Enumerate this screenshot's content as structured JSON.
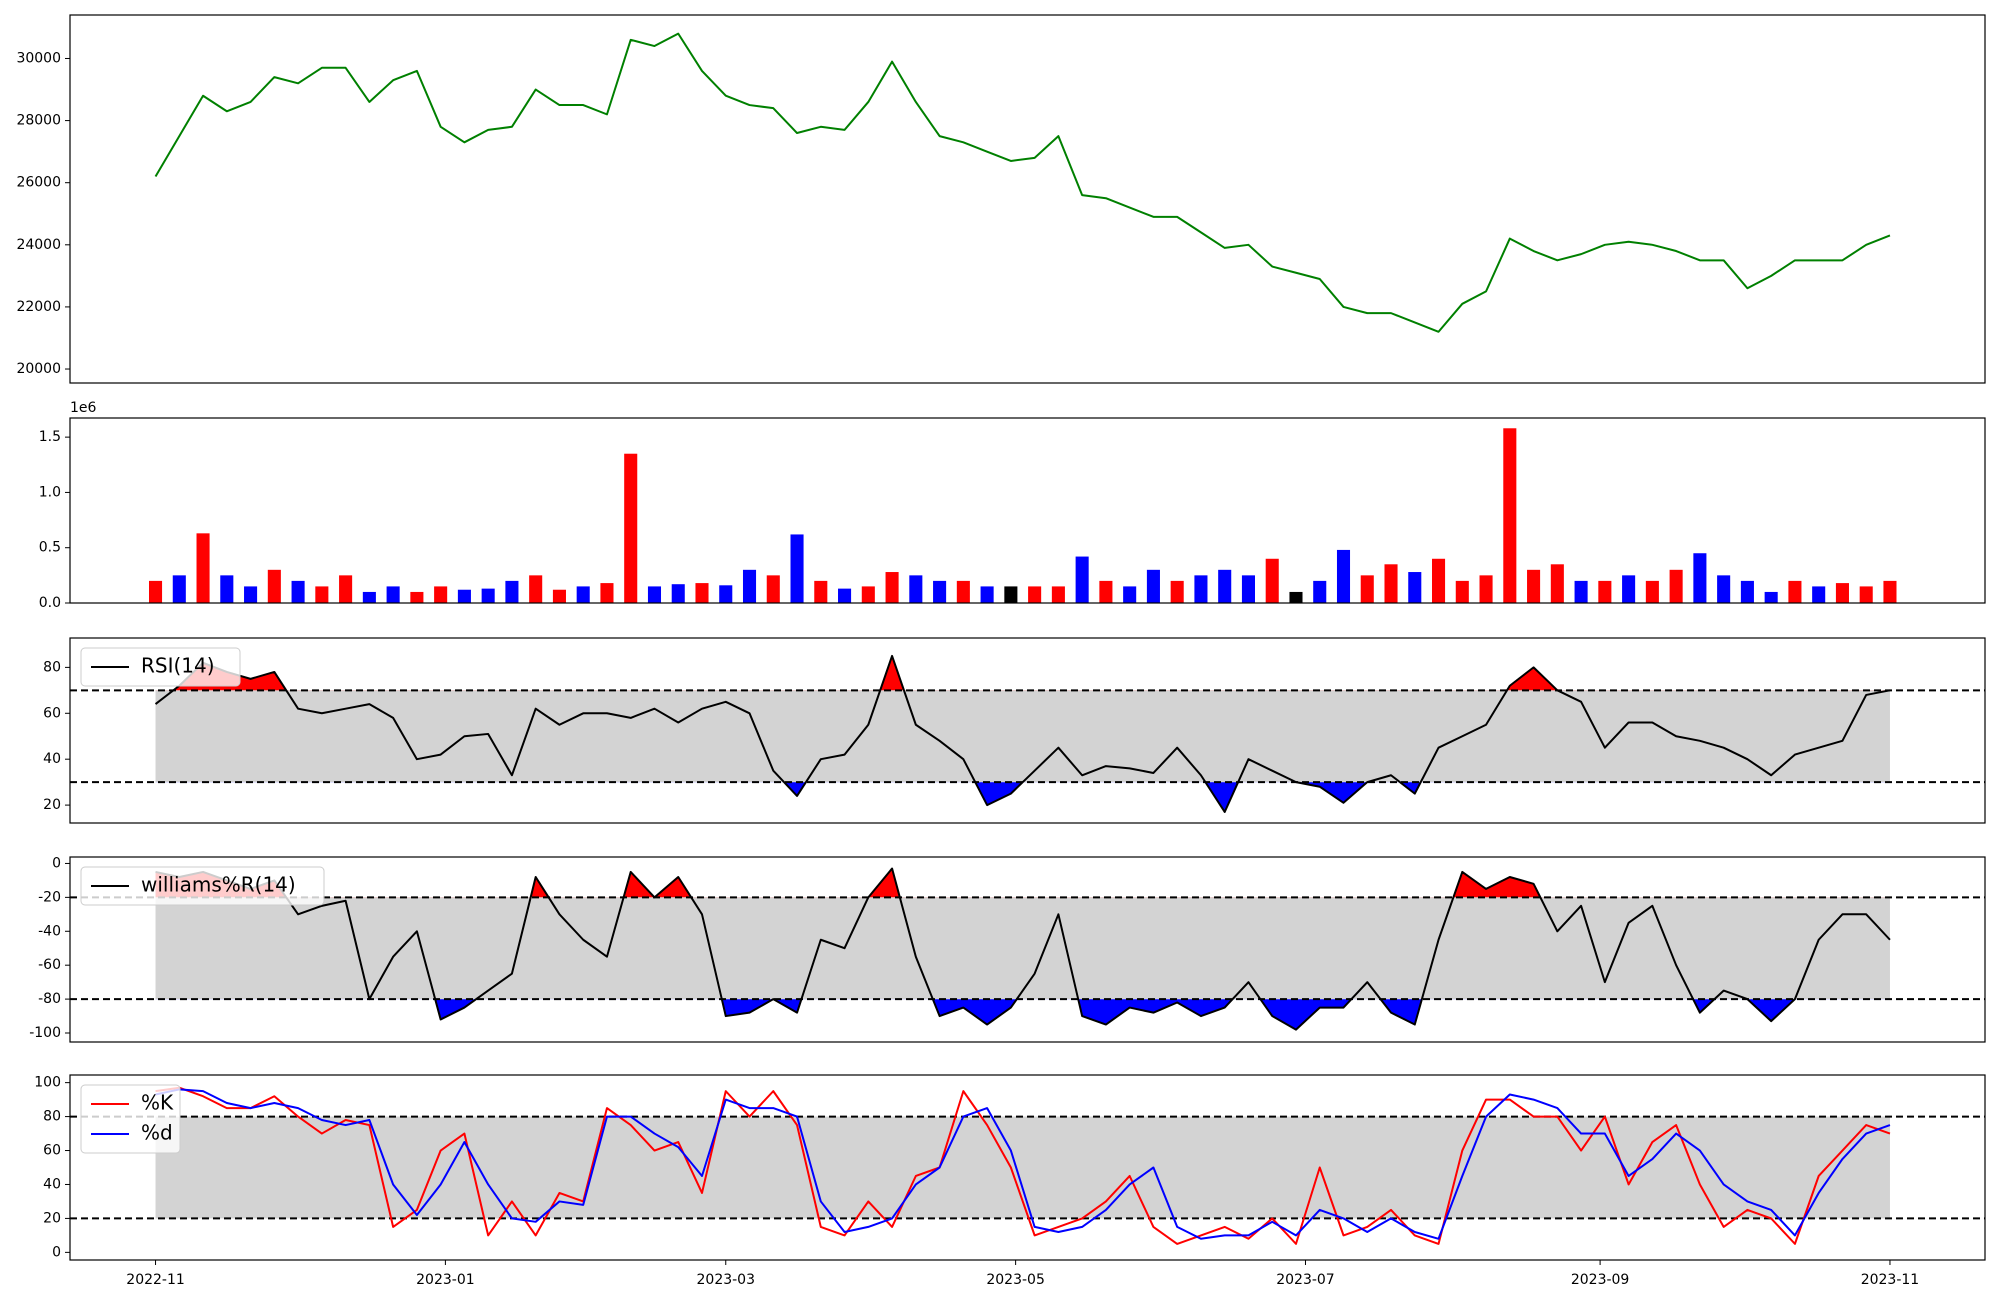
{
  "chart_data": [
    {
      "type": "line",
      "x": [
        19297,
        19302,
        19307,
        19312,
        19317,
        19322,
        19327,
        19332,
        19337,
        19342,
        19347,
        19352,
        19357,
        19362,
        19367,
        19372,
        19377,
        19382,
        19387,
        19392,
        19397,
        19402,
        19407,
        19412,
        19417,
        19422,
        19427,
        19432,
        19437,
        19442,
        19447,
        19452,
        19457,
        19462,
        19467,
        19472,
        19477,
        19482,
        19487,
        19492,
        19497,
        19502,
        19507,
        19512,
        19517,
        19522,
        19527,
        19532,
        19537,
        19542,
        19547,
        19552,
        19557,
        19562,
        19567,
        19572,
        19577,
        19582,
        19587,
        19592,
        19597,
        19602,
        19607,
        19612,
        19617,
        19622,
        19627,
        19632,
        19637,
        19642,
        19647,
        19652,
        19657,
        19662
      ],
      "series": [
        {
          "color": "green",
          "values": [
            26200,
            27500,
            28800,
            28300,
            28600,
            29400,
            29200,
            29700,
            29700,
            28600,
            29300,
            29600,
            27800,
            27300,
            27700,
            27800,
            29000,
            28500,
            28500,
            28200,
            30600,
            30400,
            30800,
            29600,
            28800,
            28500,
            28400,
            27600,
            27800,
            27700,
            28600,
            29900,
            28600,
            27500,
            27300,
            27000,
            26700,
            26800,
            27500,
            25600,
            25500,
            25200,
            24900,
            24900,
            24400,
            23900,
            24000,
            23300,
            23100,
            22900,
            22000,
            21800,
            21800,
            21500,
            21200,
            22100,
            22500,
            24200,
            23800,
            23500,
            23700,
            24000,
            24100,
            24000,
            23800,
            23500,
            23500,
            22600,
            23000,
            23500,
            23500,
            23500,
            24000,
            24300
          ]
        }
      ],
      "xlim": [
        19279,
        19682
      ],
      "ylim": [
        19550,
        31400
      ],
      "yticks": [
        20000,
        22000,
        24000,
        26000,
        28000,
        30000
      ]
    },
    {
      "type": "bar",
      "offset_label": "1e6",
      "x": [
        19297,
        19302,
        19307,
        19312,
        19317,
        19322,
        19327,
        19332,
        19337,
        19342,
        19347,
        19352,
        19357,
        19362,
        19367,
        19372,
        19377,
        19382,
        19387,
        19392,
        19397,
        19402,
        19407,
        19412,
        19417,
        19422,
        19427,
        19432,
        19437,
        19442,
        19447,
        19452,
        19457,
        19462,
        19467,
        19472,
        19477,
        19482,
        19487,
        19492,
        19497,
        19502,
        19507,
        19512,
        19517,
        19522,
        19527,
        19532,
        19537,
        19542,
        19547,
        19552,
        19557,
        19562,
        19567,
        19572,
        19577,
        19582,
        19587,
        19592,
        19597,
        19602,
        19607,
        19612,
        19617,
        19622,
        19627,
        19632,
        19637,
        19642,
        19647,
        19652,
        19657,
        19662
      ],
      "values": [
        200000,
        250000,
        630000,
        250000,
        150000,
        300000,
        200000,
        150000,
        250000,
        100000,
        150000,
        100000,
        150000,
        120000,
        130000,
        200000,
        250000,
        120000,
        150000,
        180000,
        1350000,
        150000,
        170000,
        180000,
        160000,
        300000,
        250000,
        620000,
        200000,
        130000,
        150000,
        280000,
        250000,
        200000,
        200000,
        150000,
        150000,
        150000,
        150000,
        420000,
        200000,
        150000,
        300000,
        200000,
        250000,
        300000,
        250000,
        400000,
        100000,
        200000,
        480000,
        250000,
        350000,
        280000,
        400000,
        200000,
        250000,
        1580000,
        300000,
        350000,
        200000,
        200000,
        250000,
        200000,
        300000,
        450000,
        250000,
        200000,
        100000,
        200000,
        150000,
        180000,
        150000,
        200000
      ],
      "colors": [
        "red",
        "blue",
        "red",
        "blue",
        "blue",
        "red",
        "blue",
        "red",
        "red",
        "blue",
        "blue",
        "red",
        "red",
        "blue",
        "blue",
        "blue",
        "red",
        "red",
        "blue",
        "red",
        "red",
        "blue",
        "blue",
        "red",
        "blue",
        "blue",
        "red",
        "blue",
        "red",
        "blue",
        "red",
        "red",
        "blue",
        "blue",
        "red",
        "blue",
        "black",
        "red",
        "red",
        "blue",
        "red",
        "blue",
        "blue",
        "red",
        "blue",
        "blue",
        "blue",
        "red",
        "black",
        "blue",
        "blue",
        "red",
        "red",
        "blue",
        "red",
        "red",
        "red",
        "red",
        "red",
        "red",
        "blue",
        "red",
        "blue",
        "red",
        "red",
        "blue",
        "blue",
        "blue",
        "blue",
        "red",
        "blue",
        "red",
        "red",
        "red"
      ],
      "xlim": [
        19279,
        19682
      ],
      "ylim": [
        0,
        1673000
      ],
      "yticks": [
        {
          "value": 0,
          "label": "0.0"
        },
        {
          "value": 500000,
          "label": "0.5"
        },
        {
          "value": 1000000,
          "label": "1.0"
        },
        {
          "value": 1500000,
          "label": "1.5"
        }
      ]
    },
    {
      "type": "line",
      "legend": "upper left",
      "x": [
        19297,
        19302,
        19307,
        19312,
        19317,
        19322,
        19327,
        19332,
        19337,
        19342,
        19347,
        19352,
        19357,
        19362,
        19367,
        19372,
        19377,
        19382,
        19387,
        19392,
        19397,
        19402,
        19407,
        19412,
        19417,
        19422,
        19427,
        19432,
        19437,
        19442,
        19447,
        19452,
        19457,
        19462,
        19467,
        19472,
        19477,
        19482,
        19487,
        19492,
        19497,
        19502,
        19507,
        19512,
        19517,
        19522,
        19527,
        19532,
        19537,
        19542,
        19547,
        19552,
        19557,
        19562,
        19567,
        19572,
        19577,
        19582,
        19587,
        19592,
        19597,
        19602,
        19607,
        19612,
        19617,
        19622,
        19627,
        19632,
        19637,
        19642,
        19647,
        19652,
        19657,
        19662
      ],
      "series": [
        {
          "name": "RSI(14)",
          "color": "black",
          "values": [
            64,
            72,
            82,
            78,
            75,
            78,
            62,
            60,
            62,
            64,
            58,
            40,
            42,
            50,
            51,
            33,
            62,
            55,
            60,
            60,
            58,
            62,
            56,
            62,
            65,
            60,
            35,
            24,
            40,
            42,
            55,
            85,
            55,
            48,
            40,
            20,
            25,
            35,
            45,
            33,
            37,
            36,
            34,
            45,
            33,
            17,
            40,
            35,
            30,
            28,
            21,
            30,
            33,
            25,
            45,
            50,
            55,
            72,
            80,
            70,
            65,
            45,
            56,
            56,
            50,
            48,
            45,
            40,
            33,
            42,
            45,
            48,
            68,
            70
          ]
        }
      ],
      "thresholds": [
        70,
        30
      ],
      "band_color": "lightgray",
      "fill_above": "red",
      "fill_below": "blue",
      "xlim": [
        19279,
        19682
      ],
      "ylim": [
        12.2,
        92.8
      ],
      "yticks": [
        20,
        40,
        60,
        80
      ]
    },
    {
      "type": "line",
      "legend": "upper left",
      "x": [
        19297,
        19302,
        19307,
        19312,
        19317,
        19322,
        19327,
        19332,
        19337,
        19342,
        19347,
        19352,
        19357,
        19362,
        19367,
        19372,
        19377,
        19382,
        19387,
        19392,
        19397,
        19402,
        19407,
        19412,
        19417,
        19422,
        19427,
        19432,
        19437,
        19442,
        19447,
        19452,
        19457,
        19462,
        19467,
        19472,
        19477,
        19482,
        19487,
        19492,
        19497,
        19502,
        19507,
        19512,
        19517,
        19522,
        19527,
        19532,
        19537,
        19542,
        19547,
        19552,
        19557,
        19562,
        19567,
        19572,
        19577,
        19582,
        19587,
        19592,
        19597,
        19602,
        19607,
        19612,
        19617,
        19622,
        19627,
        19632,
        19637,
        19642,
        19647,
        19652,
        19657,
        19662
      ],
      "series": [
        {
          "name": "williams%R(14)",
          "color": "black",
          "values": [
            -5,
            -8,
            -5,
            -10,
            -15,
            -10,
            -30,
            -25,
            -22,
            -80,
            -55,
            -40,
            -92,
            -85,
            -75,
            -65,
            -8,
            -30,
            -45,
            -55,
            -5,
            -20,
            -8,
            -30,
            -90,
            -88,
            -80,
            -88,
            -45,
            -50,
            -20,
            -3,
            -55,
            -90,
            -85,
            -95,
            -85,
            -65,
            -30,
            -90,
            -95,
            -85,
            -88,
            -82,
            -90,
            -85,
            -70,
            -90,
            -98,
            -85,
            -85,
            -70,
            -88,
            -95,
            -45,
            -5,
            -15,
            -8,
            -12,
            -40,
            -25,
            -70,
            -35,
            -25,
            -60,
            -88,
            -75,
            -80,
            -93,
            -80,
            -45,
            -30,
            -30,
            -45
          ]
        }
      ],
      "thresholds": [
        -20,
        -80
      ],
      "band_color": "lightgray",
      "fill_above": "red",
      "fill_below": "blue",
      "xlim": [
        19279,
        19682
      ],
      "ylim": [
        -105.3,
        3.8
      ],
      "yticks": [
        -100,
        -80,
        -60,
        -40,
        -20,
        0
      ]
    },
    {
      "type": "line",
      "legend": "upper left",
      "x": [
        19297,
        19302,
        19307,
        19312,
        19317,
        19322,
        19327,
        19332,
        19337,
        19342,
        19347,
        19352,
        19357,
        19362,
        19367,
        19372,
        19377,
        19382,
        19387,
        19392,
        19397,
        19402,
        19407,
        19412,
        19417,
        19422,
        19427,
        19432,
        19437,
        19442,
        19447,
        19452,
        19457,
        19462,
        19467,
        19472,
        19477,
        19482,
        19487,
        19492,
        19497,
        19502,
        19507,
        19512,
        19517,
        19522,
        19527,
        19532,
        19537,
        19542,
        19547,
        19552,
        19557,
        19562,
        19567,
        19572,
        19577,
        19582,
        19587,
        19592,
        19597,
        19602,
        19607,
        19612,
        19617,
        19622,
        19627,
        19632,
        19637,
        19642,
        19647,
        19652,
        19657,
        19662
      ],
      "series": [
        {
          "name": "%K",
          "color": "red",
          "values": [
            95,
            97,
            92,
            85,
            85,
            92,
            80,
            70,
            78,
            75,
            15,
            25,
            60,
            70,
            10,
            30,
            10,
            35,
            30,
            85,
            75,
            60,
            65,
            35,
            95,
            80,
            95,
            75,
            15,
            10,
            30,
            15,
            45,
            50,
            95,
            75,
            50,
            10,
            15,
            20,
            30,
            45,
            15,
            5,
            10,
            15,
            8,
            20,
            5,
            50,
            10,
            15,
            25,
            10,
            5,
            60,
            90,
            90,
            80,
            80,
            60,
            80,
            40,
            65,
            75,
            40,
            15,
            25,
            20,
            5,
            45,
            60,
            75,
            70
          ]
        },
        {
          "name": "%d",
          "color": "blue",
          "values": [
            93,
            96,
            95,
            88,
            85,
            88,
            85,
            78,
            75,
            78,
            40,
            22,
            40,
            65,
            40,
            20,
            18,
            30,
            28,
            80,
            80,
            70,
            62,
            45,
            90,
            85,
            85,
            80,
            30,
            12,
            15,
            20,
            40,
            50,
            80,
            85,
            60,
            15,
            12,
            15,
            25,
            40,
            50,
            15,
            8,
            10,
            10,
            18,
            10,
            25,
            20,
            12,
            20,
            12,
            8,
            45,
            80,
            93,
            90,
            85,
            70,
            70,
            45,
            55,
            70,
            60,
            40,
            30,
            25,
            10,
            35,
            55,
            70,
            75
          ]
        }
      ],
      "thresholds": [
        80,
        20
      ],
      "band_color": "lightgray",
      "xlim": [
        19279,
        19682
      ],
      "ylim": [
        -4.5,
        104.5
      ],
      "yticks": [
        0,
        20,
        40,
        60,
        80,
        100
      ],
      "xticks": [
        {
          "value": 19297,
          "label": "2022-11"
        },
        {
          "value": 19358,
          "label": "2023-01"
        },
        {
          "value": 19417,
          "label": "2023-03"
        },
        {
          "value": 19478,
          "label": "2023-05"
        },
        {
          "value": 19539,
          "label": "2023-07"
        },
        {
          "value": 19601,
          "label": "2023-09"
        },
        {
          "value": 19662,
          "label": "2023-11"
        }
      ]
    }
  ]
}
